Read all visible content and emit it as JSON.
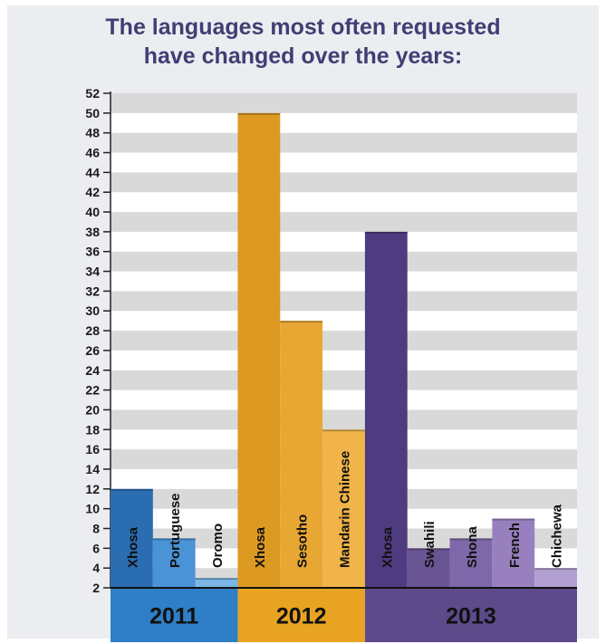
{
  "chart_data": {
    "type": "bar",
    "title_lines": [
      "The languages most often requested",
      "have changed over the years:"
    ],
    "ylim": [
      2,
      52
    ],
    "yticks": [
      2,
      4,
      6,
      8,
      10,
      12,
      14,
      16,
      18,
      20,
      22,
      24,
      26,
      28,
      30,
      32,
      34,
      36,
      38,
      40,
      42,
      44,
      46,
      48,
      50,
      52
    ],
    "grid": true,
    "groups": [
      {
        "label": "2011",
        "color": "#2f7fc8",
        "bars": [
          {
            "name": "Xhosa",
            "value": 12,
            "color": "#2b6db1"
          },
          {
            "name": "Portuguese",
            "value": 7,
            "color": "#4a93d6"
          },
          {
            "name": "Oromo",
            "value": 3,
            "color": "#7bb6e6"
          }
        ]
      },
      {
        "label": "2012",
        "color": "#e7a321",
        "bars": [
          {
            "name": "Xhosa",
            "value": 50,
            "color": "#dd9a22"
          },
          {
            "name": "Sesotho",
            "value": 29,
            "color": "#e8a733"
          },
          {
            "name": "Mandarin Chinese",
            "value": 18,
            "color": "#f0b448"
          }
        ]
      },
      {
        "label": "2013",
        "color": "#5d4a8b",
        "bars": [
          {
            "name": "Xhosa",
            "value": 38,
            "color": "#4e3b80"
          },
          {
            "name": "Swahili",
            "value": 6,
            "color": "#6a5594"
          },
          {
            "name": "Shona",
            "value": 7,
            "color": "#7e68a9"
          },
          {
            "name": "French",
            "value": 9,
            "color": "#9880bf"
          },
          {
            "name": "Chichewa",
            "value": 4,
            "color": "#b2a1d0"
          }
        ]
      }
    ]
  }
}
